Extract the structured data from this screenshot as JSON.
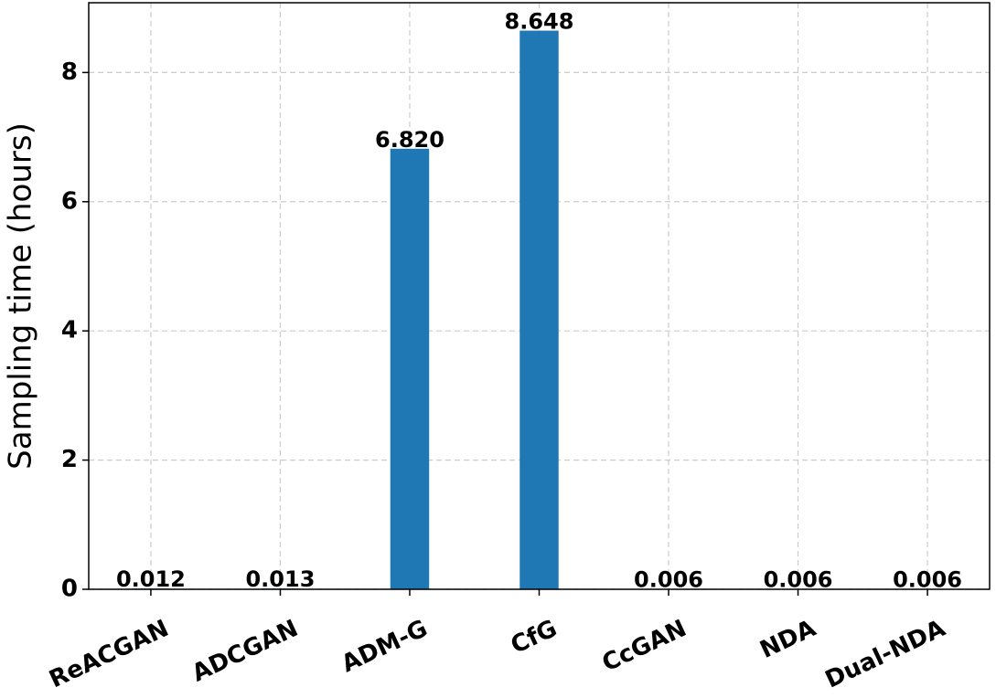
{
  "chart_data": {
    "type": "bar",
    "ylabel": "Sampling time (hours)",
    "categories": [
      "ReACGAN",
      "ADCGAN",
      "ADM-G",
      "CfG",
      "CcGAN",
      "NDA",
      "Dual-NDA"
    ],
    "values": [
      0.012,
      0.013,
      6.82,
      8.648,
      0.006,
      0.006,
      0.006
    ],
    "value_labels": [
      "0.012",
      "0.013",
      "6.820",
      "8.648",
      "0.006",
      "0.006",
      "0.006"
    ],
    "color": "#1f77b4",
    "ylim": [
      0,
      9.08
    ],
    "yticks": [
      0,
      2,
      4,
      6,
      8
    ],
    "grid": true
  }
}
